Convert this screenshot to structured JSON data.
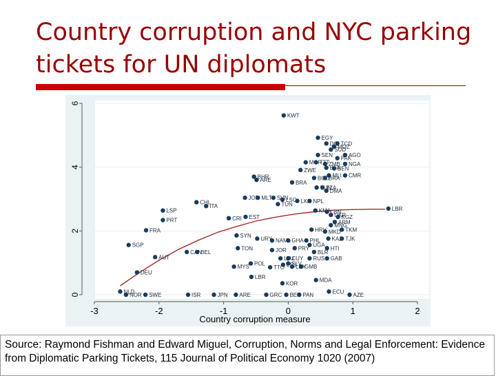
{
  "slide": {
    "title": "Country corruption and NYC parking tickets for UN diplomats",
    "source": "Source:  Raymond Fishman and Edward Miguel, Corruption, Norms and Legal Enforcement: Evidence from Diplomatic Parking Tickets, 115 Journal of Political Economy 1020 (2007)"
  },
  "colors": {
    "title": "#990000",
    "accent_bar": "#cc0000",
    "plot_bg": "#ffffff",
    "frame_bg": "#eaf2f3",
    "points": "#1a3b5c",
    "fit_line": "#a52a2a"
  },
  "chart_data": {
    "type": "scatter",
    "xlabel": "Country corruption measure",
    "ylabel": "",
    "xlim": [
      -3,
      2
    ],
    "ylim": [
      0,
      6
    ],
    "xticks": [
      "-3",
      "-2",
      "-1",
      "0",
      "1",
      "2"
    ],
    "yticks": [
      "0",
      "2",
      "4",
      "6"
    ],
    "grid": true,
    "points": [
      {
        "x": -0.07,
        "y": 5.62,
        "label": "KWT"
      },
      {
        "x": 0.46,
        "y": 4.92,
        "label": "EGY"
      },
      {
        "x": 0.59,
        "y": 4.74,
        "label": "DCI"
      },
      {
        "x": 0.76,
        "y": 4.74,
        "label": "TCD"
      },
      {
        "x": 0.71,
        "y": 4.64,
        "label": "MOZ"
      },
      {
        "x": 0.66,
        "y": 4.55,
        "label": "SUD"
      },
      {
        "x": 0.46,
        "y": 4.38,
        "label": "SEN"
      },
      {
        "x": 0.88,
        "y": 4.38,
        "label": "AGO"
      },
      {
        "x": 0.76,
        "y": 4.28,
        "label": "PAK"
      },
      {
        "x": 0.27,
        "y": 4.15,
        "label": "MOR"
      },
      {
        "x": 0.43,
        "y": 4.15,
        "label": "TTT"
      },
      {
        "x": 0.57,
        "y": 4.1,
        "label": "ZMB"
      },
      {
        "x": 0.88,
        "y": 4.1,
        "label": "NGA"
      },
      {
        "x": 0.59,
        "y": 3.98,
        "label": "BFA"
      },
      {
        "x": 0.71,
        "y": 3.96,
        "label": "BEN"
      },
      {
        "x": 0.19,
        "y": 3.91,
        "label": "ZWE"
      },
      {
        "x": 0.63,
        "y": 3.74,
        "label": "MLI"
      },
      {
        "x": 0.88,
        "y": 3.74,
        "label": "CMR"
      },
      {
        "x": 0.4,
        "y": 3.66,
        "label": "BGD"
      },
      {
        "x": 0.57,
        "y": 3.66,
        "label": "BRA"
      },
      {
        "x": -0.53,
        "y": 3.7,
        "label": "BHR"
      },
      {
        "x": -0.49,
        "y": 3.6,
        "label": "ARE"
      },
      {
        "x": 0.06,
        "y": 3.52,
        "label": "BRA"
      },
      {
        "x": 0.44,
        "y": 3.36,
        "label": "TUN"
      },
      {
        "x": 0.53,
        "y": 3.36,
        "label": "TZA"
      },
      {
        "x": 0.59,
        "y": 3.26,
        "label": "DMA"
      },
      {
        "x": -0.67,
        "y": 3.04,
        "label": "JOR"
      },
      {
        "x": -0.47,
        "y": 3.04,
        "label": "MLT"
      },
      {
        "x": -0.23,
        "y": 3.04,
        "label": "SVN"
      },
      {
        "x": -0.09,
        "y": 2.98,
        "label": "LSO"
      },
      {
        "x": 0.14,
        "y": 2.94,
        "label": "LKA"
      },
      {
        "x": 0.33,
        "y": 2.94,
        "label": "NPL"
      },
      {
        "x": -0.16,
        "y": 2.84,
        "label": "TUN"
      },
      {
        "x": -1.42,
        "y": 2.9,
        "label": "CHL"
      },
      {
        "x": -1.27,
        "y": 2.78,
        "label": "ITA"
      },
      {
        "x": -1.94,
        "y": 2.64,
        "label": "LSP"
      },
      {
        "x": -1.94,
        "y": 2.34,
        "label": "PRT"
      },
      {
        "x": -0.92,
        "y": 2.4,
        "label": "CRI"
      },
      {
        "x": -0.66,
        "y": 2.44,
        "label": "EST"
      },
      {
        "x": 0.42,
        "y": 2.64,
        "label": "KMA"
      },
      {
        "x": 0.6,
        "y": 2.6,
        "label": "LBN"
      },
      {
        "x": 0.66,
        "y": 2.5,
        "label": "UKR"
      },
      {
        "x": 0.77,
        "y": 2.44,
        "label": "KGZ"
      },
      {
        "x": 1.55,
        "y": 2.7,
        "label": "LBR"
      },
      {
        "x": 0.72,
        "y": 2.28,
        "label": "ARM"
      },
      {
        "x": 0.66,
        "y": 2.18,
        "label": "MNG"
      },
      {
        "x": -2.2,
        "y": 2.02,
        "label": "FRA"
      },
      {
        "x": 0.36,
        "y": 2.04,
        "label": "HRV"
      },
      {
        "x": 0.57,
        "y": 1.98,
        "label": "MKD"
      },
      {
        "x": 0.83,
        "y": 2.04,
        "label": "TKM"
      },
      {
        "x": -0.8,
        "y": 1.86,
        "label": "SYN"
      },
      {
        "x": -0.48,
        "y": 1.76,
        "label": "URY"
      },
      {
        "x": -0.25,
        "y": 1.7,
        "label": "NAM"
      },
      {
        "x": 0.0,
        "y": 1.7,
        "label": "GHA"
      },
      {
        "x": 0.28,
        "y": 1.7,
        "label": "PHL"
      },
      {
        "x": 0.62,
        "y": 1.76,
        "label": "KAZ"
      },
      {
        "x": 0.83,
        "y": 1.76,
        "label": "TJK"
      },
      {
        "x": -2.47,
        "y": 1.56,
        "label": "SGP"
      },
      {
        "x": -0.78,
        "y": 1.46,
        "label": "TON"
      },
      {
        "x": -0.25,
        "y": 1.4,
        "label": "JOR"
      },
      {
        "x": 0.1,
        "y": 1.46,
        "label": "PRY"
      },
      {
        "x": 0.33,
        "y": 1.56,
        "label": "UGA"
      },
      {
        "x": 0.6,
        "y": 1.46,
        "label": "HTI"
      },
      {
        "x": 0.4,
        "y": 1.34,
        "label": "BLR"
      },
      {
        "x": -1.57,
        "y": 1.34,
        "label": "CAN"
      },
      {
        "x": -1.41,
        "y": 1.34,
        "label": "BEL"
      },
      {
        "x": -2.06,
        "y": 1.18,
        "label": "AUT"
      },
      {
        "x": -0.12,
        "y": 1.14,
        "label": "LTU"
      },
      {
        "x": 0.0,
        "y": 1.14,
        "label": "CUY"
      },
      {
        "x": 0.33,
        "y": 1.14,
        "label": "RUS"
      },
      {
        "x": 0.6,
        "y": 1.14,
        "label": "GAB"
      },
      {
        "x": -0.58,
        "y": 0.98,
        "label": "POL"
      },
      {
        "x": -0.08,
        "y": 0.94,
        "label": "LTU"
      },
      {
        "x": 0.0,
        "y": 0.98,
        "label": "SLV"
      },
      {
        "x": 0.2,
        "y": 0.88,
        "label": "GMB"
      },
      {
        "x": -0.84,
        "y": 0.88,
        "label": "MYS"
      },
      {
        "x": -0.28,
        "y": 0.86,
        "label": "TTO"
      },
      {
        "x": 0.06,
        "y": 0.88,
        "label": "LBY"
      },
      {
        "x": -2.34,
        "y": 0.7,
        "label": "DEU"
      },
      {
        "x": -0.57,
        "y": 0.56,
        "label": "LBR"
      },
      {
        "x": -0.09,
        "y": 0.36,
        "label": "KOR"
      },
      {
        "x": 0.43,
        "y": 0.46,
        "label": "MDA"
      },
      {
        "x": -2.6,
        "y": 0.1,
        "label": "NLD"
      },
      {
        "x": -2.51,
        "y": 0.0,
        "label": "NOR"
      },
      {
        "x": -2.21,
        "y": 0.0,
        "label": "SWE"
      },
      {
        "x": -1.55,
        "y": 0.0,
        "label": "ISR"
      },
      {
        "x": -1.15,
        "y": 0.0,
        "label": "JPN"
      },
      {
        "x": -0.81,
        "y": 0.0,
        "label": "ARE"
      },
      {
        "x": -0.34,
        "y": 0.0,
        "label": "GRC"
      },
      {
        "x": -0.03,
        "y": 0.0,
        "label": "BEN"
      },
      {
        "x": 0.17,
        "y": 0.0,
        "label": "PAN"
      },
      {
        "x": 0.63,
        "y": 0.1,
        "label": "ECU"
      },
      {
        "x": 0.95,
        "y": 0.0,
        "label": "AZE"
      }
    ],
    "fit_line": [
      {
        "x": -2.6,
        "y": 0.28
      },
      {
        "x": -2.3,
        "y": 0.7
      },
      {
        "x": -2.0,
        "y": 1.08
      },
      {
        "x": -1.7,
        "y": 1.42
      },
      {
        "x": -1.4,
        "y": 1.7
      },
      {
        "x": -1.1,
        "y": 1.95
      },
      {
        "x": -0.8,
        "y": 2.14
      },
      {
        "x": -0.5,
        "y": 2.31
      },
      {
        "x": -0.2,
        "y": 2.43
      },
      {
        "x": 0.1,
        "y": 2.53
      },
      {
        "x": 0.4,
        "y": 2.6
      },
      {
        "x": 0.7,
        "y": 2.65
      },
      {
        "x": 1.0,
        "y": 2.67
      },
      {
        "x": 1.3,
        "y": 2.68
      },
      {
        "x": 1.5,
        "y": 2.68
      }
    ]
  }
}
